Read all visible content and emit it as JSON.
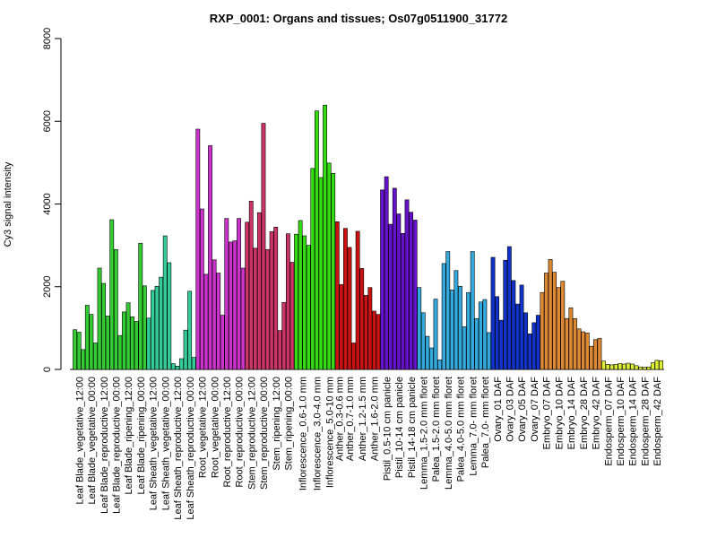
{
  "chart_data": {
    "type": "bar",
    "title": "RXP_0001: Organs and tissues; Os07g0511900_31772",
    "ylabel": "Cy3 signal intensity",
    "xlabel": "",
    "ylim": [
      0,
      8000
    ],
    "yticks": [
      0,
      2000,
      4000,
      6000,
      8000
    ],
    "grid": false,
    "legend": "none",
    "colors": {
      "green": "#33cc33",
      "teal": "#33cc99",
      "magenta": "#cc33cc",
      "crimson": "#cc3366",
      "bright_green": "#33dd11",
      "red": "#cc1111",
      "purple": "#6611cc",
      "sky": "#33aadd",
      "blue": "#1133cc",
      "orange": "#dd8833",
      "yellow": "#ddee33"
    },
    "groups": [
      {
        "label": "Leaf Blade_vegetative_12:00",
        "color": "#33cc33",
        "values": [
          960,
          900,
          480
        ]
      },
      {
        "label": "Leaf Blade_vegetative_00:00",
        "color": "#33cc33",
        "values": [
          1550,
          1330,
          640
        ]
      },
      {
        "label": "Leaf Blade_reproductive_12:00",
        "color": "#33cc33",
        "values": [
          2450,
          2080,
          1290
        ]
      },
      {
        "label": "Leaf Blade_reproductive_00:00",
        "color": "#33cc33",
        "values": [
          3620,
          2900,
          820
        ]
      },
      {
        "label": "Leaf Blade_ripening_12:00",
        "color": "#33cc33",
        "values": [
          1390,
          1610,
          1270
        ]
      },
      {
        "label": "Leaf Blade_ripening_00:00",
        "color": "#33cc33",
        "values": [
          1160,
          3050,
          2020
        ]
      },
      {
        "label": "Leaf Sheath_vegetative_12:00",
        "color": "#33cc99",
        "values": [
          1240,
          1910,
          2010
        ]
      },
      {
        "label": "Leaf Sheath_vegetative_00:00",
        "color": "#33cc99",
        "values": [
          2230,
          3230,
          2580
        ]
      },
      {
        "label": "Leaf Sheath_reproductive_12:00",
        "color": "#33cc99",
        "values": [
          140,
          80,
          260
        ]
      },
      {
        "label": "Leaf Sheath_reproductive_00:00",
        "color": "#33cc99",
        "values": [
          950,
          1890,
          290
        ]
      },
      {
        "label": "Root_vegetative_12:00",
        "color": "#cc33cc",
        "values": [
          5810,
          3880,
          2300
        ]
      },
      {
        "label": "Root_vegetative_00:00",
        "color": "#cc33cc",
        "values": [
          5410,
          2650,
          2330
        ]
      },
      {
        "label": "Root_reproductive_12:00",
        "color": "#cc33cc",
        "values": [
          1310,
          3650,
          3080
        ]
      },
      {
        "label": "Root_reproductive_00:00",
        "color": "#cc33cc",
        "values": [
          3110,
          3650,
          2450
        ]
      },
      {
        "label": "Stem_reproductive_12:00",
        "color": "#cc3366",
        "values": [
          3560,
          4070,
          2930
        ]
      },
      {
        "label": "Stem_reproductive_00:00",
        "color": "#cc3366",
        "values": [
          3790,
          5950,
          2900
        ]
      },
      {
        "label": "Stem_ripening_12:00",
        "color": "#cc3366",
        "values": [
          3330,
          3440,
          940
        ]
      },
      {
        "label": "Stem_ripening_00:00",
        "color": "#cc3366",
        "values": [
          1620,
          3280,
          2590
        ]
      },
      {
        "label": "Inflorescence_0.6-1.0 mm",
        "color": "#33dd11",
        "values": [
          3270,
          3600,
          3230,
          3000
        ]
      },
      {
        "label": "Inflorescence_3.0-4.0 mm",
        "color": "#33dd11",
        "values": [
          4860,
          6250,
          4640
        ]
      },
      {
        "label": "Inflorescence_5.0-10 mm",
        "color": "#33dd11",
        "values": [
          6390,
          4990,
          4740
        ]
      },
      {
        "label": "Anther_0.3-0.6 mm",
        "color": "#cc1111",
        "values": [
          3570,
          2050
        ]
      },
      {
        "label": "Anther_0.7-1.0 mm",
        "color": "#cc1111",
        "values": [
          3410,
          2950,
          640
        ]
      },
      {
        "label": "Anther_1.2-1.5 mm",
        "color": "#cc1111",
        "values": [
          3340,
          2440,
          1790
        ]
      },
      {
        "label": "Anther_1.6-2.0 mm",
        "color": "#cc1111",
        "values": [
          1980,
          1410,
          1330
        ]
      },
      {
        "label": "Pistil_0.5-10 cm panicle",
        "color": "#6611cc",
        "values": [
          4340,
          4660,
          3510
        ]
      },
      {
        "label": "Pistil_10-14 cm panicle",
        "color": "#6611cc",
        "values": [
          4380,
          3760,
          3290
        ]
      },
      {
        "label": "Pistil_14-18 cm panicle",
        "color": "#6611cc",
        "values": [
          4100,
          3800,
          3610
        ]
      },
      {
        "label": "Lemma_1.5-2.0 mm floret",
        "color": "#33aadd",
        "values": [
          1980,
          1370,
          800
        ]
      },
      {
        "label": "Palea_1.5-2.0 mm floret",
        "color": "#33aadd",
        "values": [
          520,
          1700,
          230
        ]
      },
      {
        "label": "Lemma_4.0-5.0 mm floret",
        "color": "#33aadd",
        "values": [
          2560,
          2850,
          1920
        ]
      },
      {
        "label": "Palea_4.0-5.0 mm floret",
        "color": "#33aadd",
        "values": [
          2390,
          2010,
          1030
        ]
      },
      {
        "label": "Lemma_7.0- mm floret",
        "color": "#33aadd",
        "values": [
          1860,
          2850,
          1230
        ]
      },
      {
        "label": "Palea_7.0- mm floret",
        "color": "#33aadd",
        "values": [
          1630,
          1690,
          890
        ]
      },
      {
        "label": "Ovary_01 DAF",
        "color": "#1133cc",
        "values": [
          2710,
          1760,
          1190
        ]
      },
      {
        "label": "Ovary_03 DAF",
        "color": "#1133cc",
        "values": [
          2640,
          2970,
          2150
        ]
      },
      {
        "label": "Ovary_05 DAF",
        "color": "#1133cc",
        "values": [
          1580,
          2040,
          1370
        ]
      },
      {
        "label": "Ovary_07 DAF",
        "color": "#1133cc",
        "values": [
          860,
          1130,
          1310
        ]
      },
      {
        "label": "Embryo_07 DAF",
        "color": "#dd8833",
        "values": [
          1860,
          2330,
          2660
        ]
      },
      {
        "label": "Embryo_10 DAF",
        "color": "#dd8833",
        "values": [
          2350,
          1980,
          2130
        ]
      },
      {
        "label": "Embryo_14 DAF",
        "color": "#dd8833",
        "values": [
          1230,
          1490,
          1230
        ]
      },
      {
        "label": "Embryo_28 DAF",
        "color": "#dd8833",
        "values": [
          980,
          910,
          880
        ]
      },
      {
        "label": "Embryo_42 DAF",
        "color": "#dd8833",
        "values": [
          560,
          720,
          750
        ]
      },
      {
        "label": "Endosperm_07 DAF",
        "color": "#ddee33",
        "values": [
          200,
          120,
          110
        ]
      },
      {
        "label": "Endosperm_10 DAF",
        "color": "#ddee33",
        "values": [
          120,
          140,
          130
        ]
      },
      {
        "label": "Endosperm_14 DAF",
        "color": "#ddee33",
        "values": [
          150,
          130,
          90
        ]
      },
      {
        "label": "Endosperm_28 DAF",
        "color": "#ddee33",
        "values": [
          60,
          50,
          60
        ]
      },
      {
        "label": "Endosperm_42 DAF",
        "color": "#ddee33",
        "values": [
          160,
          220,
          210
        ]
      }
    ]
  }
}
